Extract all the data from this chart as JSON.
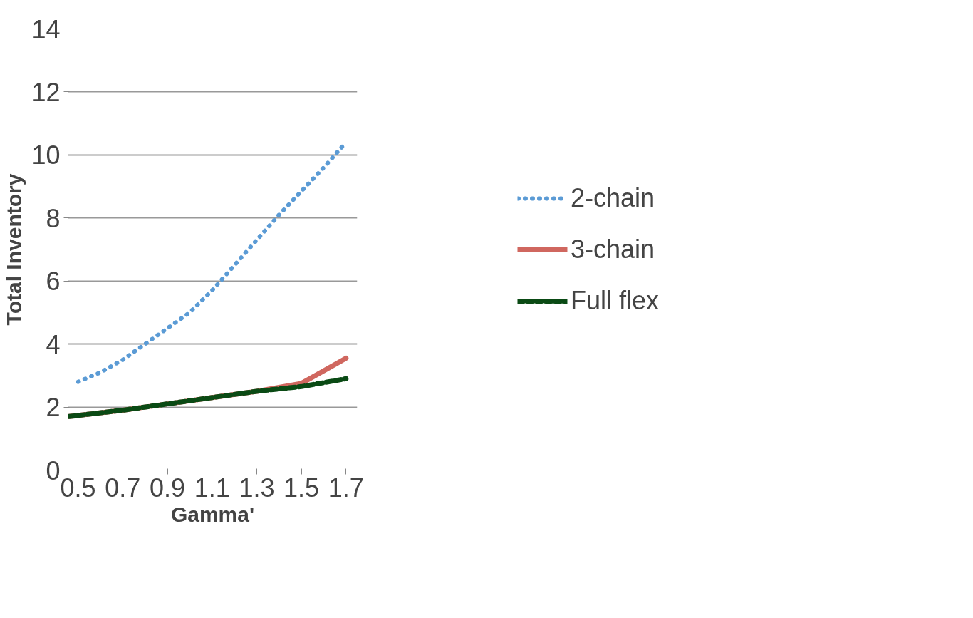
{
  "chart_data": {
    "type": "line",
    "xlabel": "Gamma'",
    "ylabel": "Total Inventory",
    "xlim": [
      0.455,
      1.75
    ],
    "xticks": [
      0.5,
      0.7,
      0.9,
      1.1,
      1.3,
      1.5,
      1.7
    ],
    "ylim": [
      0,
      14
    ],
    "yticks": [
      0,
      2,
      4,
      6,
      8,
      10,
      12,
      14
    ],
    "grid": "y",
    "legend": "right",
    "series": [
      {
        "name": "2-chain",
        "color": "#5b9bd5",
        "line_style": "dotted",
        "x": [
          0.5,
          0.6,
          0.7,
          0.8,
          0.9,
          1.0,
          1.1,
          1.2,
          1.3,
          1.4,
          1.5,
          1.6,
          1.7
        ],
        "values": [
          2.8,
          3.1,
          3.5,
          4.0,
          4.5,
          5.0,
          5.7,
          6.5,
          7.3,
          8.1,
          8.85,
          9.6,
          10.4
        ]
      },
      {
        "name": "3-chain",
        "color": "#d0675f",
        "line_style": "solid",
        "x": [
          0.46,
          0.7,
          0.9,
          1.1,
          1.3,
          1.5,
          1.7
        ],
        "values": [
          1.7,
          1.9,
          2.1,
          2.3,
          2.5,
          2.75,
          3.55
        ]
      },
      {
        "name": "Full flex",
        "color": "#0a4a14",
        "line_style": "dashed",
        "x": [
          0.46,
          0.7,
          0.9,
          1.1,
          1.3,
          1.5,
          1.7
        ],
        "values": [
          1.7,
          1.9,
          2.1,
          2.3,
          2.5,
          2.65,
          2.9
        ]
      }
    ]
  }
}
